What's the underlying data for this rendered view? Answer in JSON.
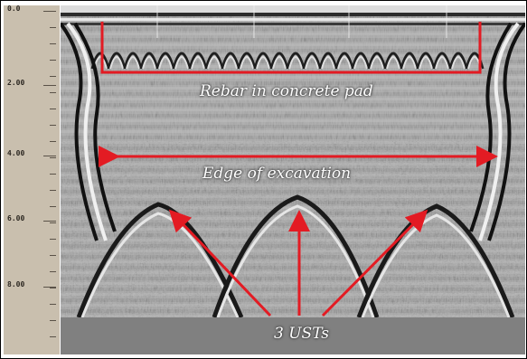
{
  "ruler": {
    "labels": [
      "0.0",
      "2.00",
      "4.00",
      "6.00",
      "8.00"
    ]
  },
  "annotations": {
    "rebar": "Rebar in concrete pad",
    "edge": "Edge of excavation",
    "usts": "3 USTs"
  },
  "colors": {
    "annotation_red": "#e31b23",
    "annotation_text": "#ffffff",
    "ruler_bg": "#c9bfae",
    "floor": "#808080"
  }
}
